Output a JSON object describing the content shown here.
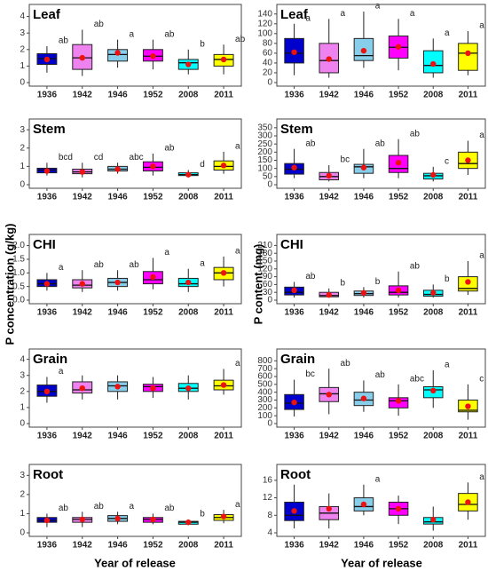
{
  "figure": {
    "left_ylabel": "P concentration (g/kg)",
    "right_ylabel": "P content (mg)",
    "left_xlabel": "Year of release",
    "right_xlabel": "Year of release"
  },
  "chart_data": [
    {
      "type": "box",
      "title": "Leaf",
      "categories": [
        "1936",
        "1942",
        "1946",
        "1952",
        "2008",
        "2011"
      ],
      "colors": [
        "#0000cc",
        "#ee82ee",
        "#87ceeb",
        "#ff00ff",
        "#00ffff",
        "#ffff00"
      ],
      "whisker_low": [
        0.6,
        0.4,
        0.9,
        0.8,
        0.5,
        0.5
      ],
      "q1": [
        1.1,
        0.8,
        1.3,
        1.3,
        0.8,
        1.0
      ],
      "median": [
        1.45,
        1.5,
        1.7,
        1.6,
        1.2,
        1.4
      ],
      "q3": [
        1.75,
        2.3,
        2.0,
        2.0,
        1.4,
        1.7
      ],
      "whisker_high": [
        2.2,
        3.2,
        2.6,
        2.6,
        2.0,
        2.3
      ],
      "mean": [
        1.4,
        1.5,
        1.8,
        1.6,
        1.1,
        1.4
      ],
      "letters": [
        "ab",
        "ab",
        "a",
        "ab",
        "b",
        "ab"
      ],
      "ylim": [
        0,
        4.3
      ],
      "yticks": [
        0,
        1,
        2,
        3,
        4
      ]
    },
    {
      "type": "box",
      "title": "Leaf",
      "categories": [
        "1936",
        "1942",
        "1946",
        "1952",
        "2008",
        "2011"
      ],
      "colors": [
        "#0000cc",
        "#ee82ee",
        "#87ceeb",
        "#ff00ff",
        "#00ffff",
        "#ffff00"
      ],
      "whisker_low": [
        15,
        10,
        30,
        25,
        10,
        15
      ],
      "q1": [
        40,
        20,
        45,
        50,
        20,
        25
      ],
      "median": [
        60,
        45,
        55,
        72,
        35,
        60
      ],
      "q3": [
        90,
        80,
        90,
        95,
        65,
        80
      ],
      "whisker_high": [
        120,
        130,
        145,
        130,
        90,
        105
      ],
      "mean": [
        62,
        48,
        65,
        73,
        38,
        60
      ],
      "letters": [
        "a",
        "a",
        "a",
        "a",
        "a",
        "a"
      ],
      "ylim": [
        0,
        145
      ],
      "yticks": [
        0,
        20,
        40,
        60,
        80,
        100,
        120,
        140
      ]
    },
    {
      "type": "box",
      "title": "Stem",
      "categories": [
        "1936",
        "1942",
        "1946",
        "1952",
        "2008",
        "2011"
      ],
      "colors": [
        "#0000cc",
        "#ee82ee",
        "#87ceeb",
        "#ff00ff",
        "#00ffff",
        "#ffff00"
      ],
      "whisker_low": [
        0.5,
        0.4,
        0.6,
        0.5,
        0.4,
        0.6
      ],
      "q1": [
        0.65,
        0.6,
        0.75,
        0.75,
        0.5,
        0.8
      ],
      "median": [
        0.8,
        0.7,
        0.85,
        0.95,
        0.55,
        1.0
      ],
      "q3": [
        0.9,
        0.85,
        1.0,
        1.25,
        0.65,
        1.3
      ],
      "whisker_high": [
        1.2,
        1.2,
        1.2,
        1.7,
        0.8,
        1.8
      ],
      "mean": [
        0.75,
        0.7,
        0.85,
        1.0,
        0.55,
        1.05
      ],
      "letters": [
        "bcd",
        "cd",
        "abc",
        "ab",
        "d",
        "a"
      ],
      "ylim": [
        0,
        3.2
      ],
      "yticks": [
        0,
        1,
        2,
        3
      ]
    },
    {
      "type": "box",
      "title": "Stem",
      "categories": [
        "1936",
        "1942",
        "1946",
        "1952",
        "2008",
        "2011"
      ],
      "colors": [
        "#0000cc",
        "#ee82ee",
        "#87ceeb",
        "#ff00ff",
        "#00ffff",
        "#ffff00"
      ],
      "whisker_low": [
        40,
        20,
        40,
        40,
        20,
        60
      ],
      "q1": [
        65,
        30,
        70,
        75,
        35,
        100
      ],
      "median": [
        95,
        50,
        110,
        100,
        55,
        130
      ],
      "q3": [
        130,
        75,
        125,
        180,
        70,
        200
      ],
      "whisker_high": [
        220,
        120,
        220,
        280,
        110,
        270
      ],
      "mean": [
        105,
        55,
        105,
        135,
        60,
        150
      ],
      "letters": [
        "ab",
        "bc",
        "ab",
        "ab",
        "c",
        "a"
      ],
      "ylim": [
        0,
        360
      ],
      "yticks": [
        0,
        50,
        100,
        150,
        200,
        250,
        300,
        350
      ]
    },
    {
      "type": "box",
      "title": "CHI",
      "categories": [
        "1936",
        "1942",
        "1946",
        "1952",
        "2008",
        "2011"
      ],
      "colors": [
        "#0000cc",
        "#ee82ee",
        "#87ceeb",
        "#ff00ff",
        "#00ffff",
        "#ffff00"
      ],
      "whisker_low": [
        0.35,
        0.3,
        0.35,
        0.4,
        0.3,
        0.5
      ],
      "q1": [
        0.5,
        0.45,
        0.5,
        0.6,
        0.5,
        0.75
      ],
      "median": [
        0.6,
        0.55,
        0.65,
        0.75,
        0.6,
        1.0
      ],
      "q3": [
        0.75,
        0.75,
        0.8,
        1.05,
        0.8,
        1.2
      ],
      "whisker_high": [
        1.0,
        1.1,
        1.1,
        1.55,
        1.15,
        1.6
      ],
      "mean": [
        0.6,
        0.6,
        0.65,
        0.85,
        0.65,
        1.0
      ],
      "letters": [
        "a",
        "ab",
        "ab",
        "a",
        "a",
        "a"
      ],
      "ylim": [
        0,
        2.15
      ],
      "yticks": [
        {
          "value": 0,
          "label": "0.0"
        },
        {
          "value": 0.5,
          "label": "0.5"
        },
        {
          "value": 1,
          "label": "1.0"
        },
        {
          "value": 1.5,
          "label": "1.5"
        },
        {
          "value": 2,
          "label": "2.0"
        }
      ]
    },
    {
      "type": "box",
      "title": "CHI",
      "categories": [
        "1936",
        "1942",
        "1946",
        "1952",
        "2008",
        "2011"
      ],
      "colors": [
        "#0000cc",
        "#ee82ee",
        "#87ceeb",
        "#ff00ff",
        "#00ffff",
        "#ffff00"
      ],
      "whisker_low": [
        10,
        10,
        10,
        10,
        10,
        20
      ],
      "q1": [
        20,
        13,
        18,
        20,
        15,
        35
      ],
      "median": [
        30,
        18,
        25,
        30,
        22,
        45
      ],
      "q3": [
        50,
        30,
        35,
        55,
        38,
        90
      ],
      "whisker_high": [
        70,
        45,
        50,
        110,
        60,
        150
      ],
      "mean": [
        38,
        20,
        28,
        38,
        28,
        70
      ],
      "letters": [
        "ab",
        "b",
        "b",
        "ab",
        "b",
        "a"
      ],
      "ylim": [
        0,
        225
      ],
      "yticks": [
        0,
        30,
        60,
        90,
        120,
        150,
        180,
        210
      ]
    },
    {
      "type": "box",
      "title": "Grain",
      "categories": [
        "1936",
        "1942",
        "1946",
        "1952",
        "2008",
        "2011"
      ],
      "colors": [
        "#0000cc",
        "#ee82ee",
        "#87ceeb",
        "#ff00ff",
        "#00ffff",
        "#ffff00"
      ],
      "whisker_low": [
        1.3,
        1.5,
        1.5,
        1.6,
        1.5,
        1.8
      ],
      "q1": [
        1.7,
        1.9,
        2.0,
        2.0,
        2.0,
        2.1
      ],
      "median": [
        2.0,
        2.1,
        2.35,
        2.3,
        2.2,
        2.35
      ],
      "q3": [
        2.4,
        2.6,
        2.6,
        2.45,
        2.5,
        2.7
      ],
      "whisker_high": [
        2.9,
        3.0,
        3.0,
        2.9,
        3.0,
        3.4
      ],
      "mean": [
        2.0,
        2.2,
        2.3,
        2.2,
        2.2,
        2.4
      ],
      "letters": [
        "a",
        null,
        null,
        null,
        null,
        "a"
      ],
      "ylim": [
        0,
        4.2
      ],
      "yticks": [
        0,
        1,
        2,
        3,
        4
      ]
    },
    {
      "type": "box",
      "title": "Grain",
      "categories": [
        "1936",
        "1942",
        "1946",
        "1952",
        "2008",
        "2011"
      ],
      "colors": [
        "#0000cc",
        "#ee82ee",
        "#87ceeb",
        "#ff00ff",
        "#00ffff",
        "#ffff00"
      ],
      "whisker_low": [
        90,
        120,
        150,
        100,
        200,
        50
      ],
      "q1": [
        180,
        280,
        230,
        200,
        330,
        150
      ],
      "median": [
        260,
        380,
        300,
        290,
        430,
        170
      ],
      "q3": [
        370,
        460,
        400,
        330,
        470,
        300
      ],
      "whisker_high": [
        560,
        700,
        550,
        500,
        680,
        500
      ],
      "mean": [
        270,
        370,
        320,
        290,
        420,
        220
      ],
      "letters": [
        "bc",
        "ab",
        "ab",
        "abc",
        "a",
        "c"
      ],
      "ylim": [
        0,
        860
      ],
      "yticks": [
        0,
        100,
        200,
        300,
        400,
        500,
        600,
        700,
        800
      ]
    },
    {
      "type": "box",
      "title": "Root",
      "categories": [
        "1936",
        "1942",
        "1946",
        "1952",
        "2008",
        "2011"
      ],
      "colors": [
        "#0000cc",
        "#ee82ee",
        "#87ceeb",
        "#ff00ff",
        "#00ffff",
        "#ffff00"
      ],
      "whisker_low": [
        0.3,
        0.3,
        0.45,
        0.45,
        0.4,
        0.5
      ],
      "q1": [
        0.55,
        0.55,
        0.6,
        0.55,
        0.45,
        0.65
      ],
      "median": [
        0.65,
        0.7,
        0.75,
        0.7,
        0.55,
        0.8
      ],
      "q3": [
        0.8,
        0.8,
        0.9,
        0.8,
        0.6,
        0.95
      ],
      "whisker_high": [
        1.0,
        1.1,
        1.1,
        1.0,
        0.7,
        1.2
      ],
      "mean": [
        0.65,
        0.7,
        0.75,
        0.7,
        0.55,
        0.85
      ],
      "letters": [
        "ab",
        "ab",
        "a",
        "ab",
        "b",
        "a"
      ],
      "ylim": [
        0,
        3.2
      ],
      "yticks": [
        0,
        1,
        2,
        3
      ]
    },
    {
      "type": "box",
      "title": "Root",
      "categories": [
        "1936",
        "1942",
        "1946",
        "1952",
        "2008",
        "2011"
      ],
      "colors": [
        "#0000cc",
        "#ee82ee",
        "#87ceeb",
        "#ff00ff",
        "#00ffff",
        "#ffff00"
      ],
      "whisker_low": [
        5,
        5,
        8,
        6,
        4.5,
        7
      ],
      "q1": [
        6.8,
        7,
        9,
        8,
        6,
        9
      ],
      "median": [
        8,
        8.5,
        10,
        9.5,
        6.5,
        10.5
      ],
      "q3": [
        11,
        10,
        12,
        11,
        7.5,
        13
      ],
      "whisker_high": [
        15,
        13,
        15,
        12.5,
        10,
        15.5
      ],
      "mean": [
        9,
        9.5,
        10.5,
        9.5,
        7,
        11
      ],
      "letters": [
        null,
        null,
        "a",
        null,
        null,
        "a"
      ],
      "ylim": [
        4,
        18
      ],
      "yticks": [
        4,
        8,
        12,
        16
      ]
    }
  ]
}
